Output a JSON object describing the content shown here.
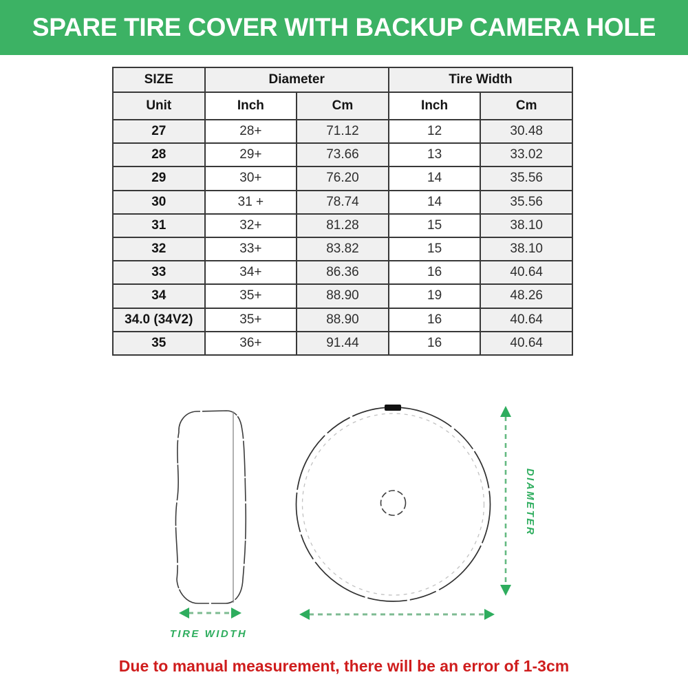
{
  "banner": {
    "title": "SPARE TIRE COVER WITH BACKUP CAMERA HOLE",
    "bg_color": "#3cb264",
    "text_color": "#ffffff"
  },
  "table": {
    "header_row1": {
      "size": "SIZE",
      "diameter": "Diameter",
      "tire_width": "Tire Width"
    },
    "header_row2": {
      "unit": "Unit",
      "inch1": "Inch",
      "cm1": "Cm",
      "inch2": "Inch",
      "cm2": "Cm"
    },
    "rows": [
      [
        "27",
        "28+",
        "71.12",
        "12",
        "30.48"
      ],
      [
        "28",
        "29+",
        "73.66",
        "13",
        "33.02"
      ],
      [
        "29",
        "30+",
        "76.20",
        "14",
        "35.56"
      ],
      [
        "30",
        "31 +",
        "78.74",
        "14",
        "35.56"
      ],
      [
        "31",
        "32+",
        "81.28",
        "15",
        "38.10"
      ],
      [
        "32",
        "33+",
        "83.82",
        "15",
        "38.10"
      ],
      [
        "33",
        "34+",
        "86.36",
        "16",
        "40.64"
      ],
      [
        "34",
        "35+",
        "88.90",
        "19",
        "48.26"
      ],
      [
        "34.0 (34V2)",
        "35+",
        "88.90",
        "16",
        "40.64"
      ],
      [
        "35",
        "36+",
        "91.44",
        "16",
        "40.64"
      ]
    ]
  },
  "diagram": {
    "tire_width_label": "TIRE WIDTH",
    "diameter_label": "DIAMETER",
    "accent_green": "#2ead5e"
  },
  "footnote": {
    "text": "Due to manual measurement, there will be an error of 1-3cm",
    "color": "#cf1d1d"
  }
}
